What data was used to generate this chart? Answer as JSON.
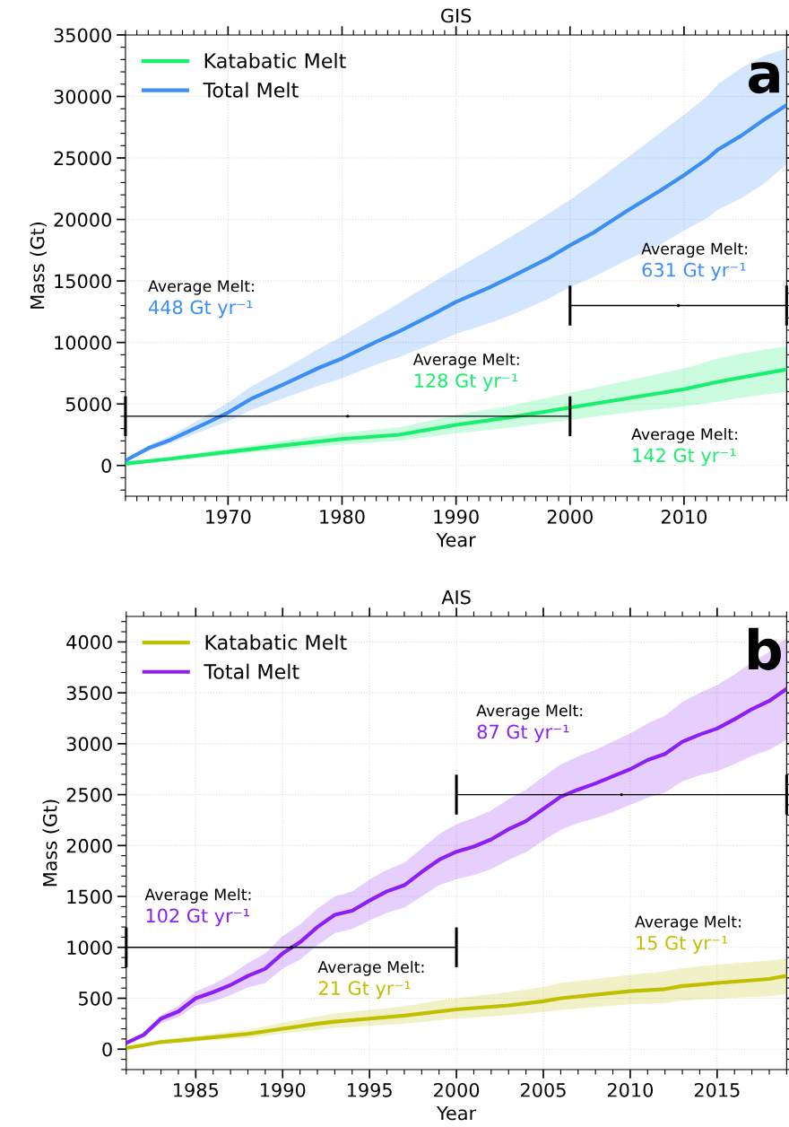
{
  "chart_data": [
    {
      "type": "line",
      "title": "GIS",
      "xlabel": "Year",
      "ylabel": "Mass (Gt)",
      "xlim": [
        1961,
        2019
      ],
      "xticks": [
        1970,
        1980,
        1990,
        2000,
        2010
      ],
      "ylim": [
        -2500,
        35000
      ],
      "yticks": [
        0,
        5000,
        10000,
        15000,
        20000,
        25000,
        30000,
        35000
      ],
      "grid": true,
      "legend": "top left",
      "line_style": "solid",
      "marker": "none",
      "series": [
        {
          "name": "Katabatic Melt",
          "color": "#17f06e",
          "x": [
            1961,
            1965,
            1970,
            1975,
            1980,
            1985,
            1990,
            1995,
            2000,
            2005,
            2010,
            2013,
            2015,
            2019
          ],
          "values": [
            150,
            550,
            1100,
            1650,
            2150,
            2500,
            3300,
            3950,
            4700,
            5450,
            6200,
            6800,
            7150,
            7800
          ],
          "upper": [
            200,
            700,
            1350,
            2050,
            2650,
            3100,
            4100,
            4900,
            5900,
            6900,
            7900,
            8700,
            9100,
            9700
          ],
          "lower": [
            120,
            420,
            850,
            1300,
            1700,
            2000,
            2600,
            3100,
            3700,
            4300,
            4800,
            5200,
            5500,
            6000
          ]
        },
        {
          "name": "Total Melt",
          "color": "#3a8ef6",
          "x": [
            1961,
            1963,
            1965,
            1968,
            1970,
            1972,
            1975,
            1978,
            1980,
            1983,
            1985,
            1988,
            1990,
            1993,
            1995,
            1998,
            2000,
            2002,
            2005,
            2008,
            2010,
            2012,
            2013,
            2015,
            2017,
            2019
          ],
          "values": [
            400,
            1400,
            2100,
            3400,
            4300,
            5400,
            6650,
            7950,
            8700,
            10050,
            10900,
            12300,
            13300,
            14500,
            15400,
            16800,
            17900,
            18900,
            20700,
            22400,
            23600,
            24900,
            25700,
            26800,
            28100,
            29300
          ],
          "upper": [
            450,
            1600,
            2450,
            4000,
            5100,
            6400,
            7900,
            9500,
            10500,
            12100,
            13200,
            14900,
            16000,
            17600,
            18700,
            20400,
            21600,
            22900,
            25000,
            27100,
            28500,
            30000,
            31000,
            32300,
            33300,
            33900
          ],
          "lower": [
            350,
            1200,
            1800,
            2900,
            3600,
            4500,
            5500,
            6500,
            7100,
            8200,
            8800,
            9900,
            10700,
            11600,
            12300,
            13500,
            14500,
            15300,
            16700,
            18000,
            19100,
            20100,
            20800,
            21700,
            22900,
            24500
          ]
        },
        {
          "type": "scatter",
          "color": "#000000",
          "marker": "none",
          "x": [
            1980.5,
            2009.5
          ],
          "values": [
            4000,
            13000
          ],
          "xerrors": [
            [
              1961,
              2000
            ],
            [
              2000,
              2019
            ]
          ]
        }
      ],
      "annotations": [
        "Average Melt:",
        "448 Gt yr⁻¹",
        "Average Melt:",
        "631 Gt yr⁻¹",
        "Average Melt:",
        "128 Gt yr⁻¹",
        "Average Melt:",
        "142 Gt yr⁻¹",
        "a"
      ]
    },
    {
      "type": "line",
      "title": "AIS",
      "xlabel": "Year",
      "ylabel": "Mass (Gt)",
      "xlim": [
        1981,
        2019
      ],
      "xticks": [
        1985,
        1990,
        1995,
        2000,
        2005,
        2010,
        2015
      ],
      "ylim": [
        -200,
        4250
      ],
      "yticks": [
        0,
        500,
        1000,
        1500,
        2000,
        2500,
        3000,
        3500,
        4000
      ],
      "grid": true,
      "legend": "top left",
      "line_style": "solid",
      "marker": "none",
      "series": [
        {
          "name": "Katabatic Melt",
          "color": "#bfbf00",
          "x": [
            1981,
            1982,
            1983,
            1985,
            1988,
            1990,
            1992,
            1993,
            1995,
            1997,
            1999,
            2000,
            2003,
            2005,
            2006,
            2010,
            2012,
            2013,
            2015,
            2018,
            2019
          ],
          "values": [
            10,
            40,
            70,
            100,
            150,
            200,
            250,
            270,
            300,
            330,
            370,
            390,
            430,
            470,
            500,
            570,
            590,
            620,
            650,
            690,
            720
          ],
          "upper": [
            18,
            45,
            90,
            130,
            190,
            260,
            320,
            350,
            385,
            420,
            480,
            500,
            560,
            610,
            650,
            730,
            765,
            795,
            830,
            870,
            890
          ],
          "lower": [
            10,
            28,
            55,
            75,
            110,
            155,
            190,
            210,
            230,
            250,
            285,
            300,
            335,
            365,
            385,
            440,
            455,
            475,
            495,
            520,
            540
          ]
        },
        {
          "name": "Total Melt",
          "color": "#8c1ff5",
          "x": [
            1981,
            1982,
            1983,
            1984,
            1985,
            1986,
            1987,
            1988,
            1989,
            1990,
            1991,
            1992,
            1993,
            1994,
            1995,
            1996,
            1997,
            1998,
            1999,
            2000,
            2001,
            2002,
            2003,
            2004,
            2005,
            2006,
            2007,
            2008,
            2009,
            2010,
            2011,
            2012,
            2013,
            2014,
            2015,
            2016,
            2017,
            2018,
            2019
          ],
          "values": [
            60,
            140,
            300,
            370,
            500,
            560,
            630,
            720,
            790,
            940,
            1050,
            1200,
            1320,
            1360,
            1460,
            1550,
            1610,
            1740,
            1860,
            1940,
            1990,
            2060,
            2160,
            2240,
            2360,
            2480,
            2550,
            2610,
            2680,
            2750,
            2840,
            2900,
            3020,
            3090,
            3150,
            3240,
            3340,
            3420,
            3540
          ],
          "upper": [
            70,
            165,
            335,
            425,
            566,
            640,
            730,
            845,
            940,
            1110,
            1225,
            1380,
            1500,
            1550,
            1665,
            1760,
            1830,
            1970,
            2110,
            2210,
            2270,
            2345,
            2455,
            2550,
            2675,
            2795,
            2875,
            2940,
            3020,
            3100,
            3200,
            3275,
            3410,
            3500,
            3575,
            3680,
            3800,
            3900,
            4040
          ],
          "lower": [
            48,
            120,
            255,
            315,
            430,
            470,
            530,
            605,
            650,
            790,
            880,
            1020,
            1140,
            1180,
            1265,
            1340,
            1390,
            1500,
            1610,
            1670,
            1710,
            1770,
            1860,
            1935,
            2050,
            2155,
            2220,
            2270,
            2330,
            2400,
            2470,
            2520,
            2630,
            2690,
            2730,
            2800,
            2880,
            2940,
            3040
          ]
        },
        {
          "type": "scatter",
          "color": "#000000",
          "marker": "none",
          "x": [
            1990.5,
            2009.5
          ],
          "values": [
            1000,
            2500
          ],
          "xerrors": [
            [
              1981,
              2000
            ],
            [
              2000,
              2019
            ]
          ]
        }
      ],
      "annotations": [
        "Average Melt:",
        "102 Gt yr⁻¹",
        "Average Melt:",
        "87 Gt yr⁻¹",
        "Average Melt:",
        "21 Gt yr⁻¹",
        "Average Melt:",
        "15 Gt yr⁻¹",
        "b"
      ]
    }
  ]
}
